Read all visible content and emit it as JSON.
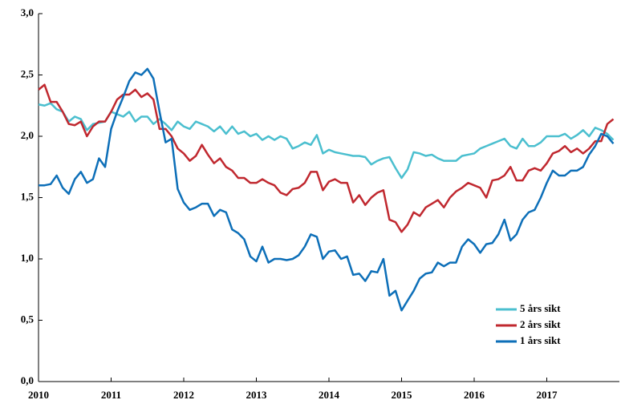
{
  "chart_data": {
    "type": "line",
    "x": [
      2010,
      2010.083,
      2010.167,
      2010.25,
      2010.333,
      2010.417,
      2010.5,
      2010.583,
      2010.667,
      2010.75,
      2010.833,
      2010.917,
      2011,
      2011.083,
      2011.167,
      2011.25,
      2011.333,
      2011.417,
      2011.5,
      2011.583,
      2011.667,
      2011.75,
      2011.833,
      2011.917,
      2012,
      2012.083,
      2012.167,
      2012.25,
      2012.333,
      2012.417,
      2012.5,
      2012.583,
      2012.667,
      2012.75,
      2012.833,
      2012.917,
      2013,
      2013.083,
      2013.167,
      2013.25,
      2013.333,
      2013.417,
      2013.5,
      2013.583,
      2013.667,
      2013.75,
      2013.833,
      2013.917,
      2014,
      2014.083,
      2014.167,
      2014.25,
      2014.333,
      2014.417,
      2014.5,
      2014.583,
      2014.667,
      2014.75,
      2014.833,
      2014.917,
      2015,
      2015.083,
      2015.167,
      2015.25,
      2015.333,
      2015.417,
      2015.5,
      2015.583,
      2015.667,
      2015.75,
      2015.833,
      2015.917,
      2016,
      2016.083,
      2016.167,
      2016.25,
      2016.333,
      2016.417,
      2016.5,
      2016.583,
      2016.667,
      2016.75,
      2016.833,
      2016.917,
      2017,
      2017.083,
      2017.167,
      2017.25,
      2017.333,
      2017.417,
      2017.5,
      2017.583,
      2017.667,
      2017.75,
      2017.833,
      2017.917
    ],
    "series": [
      {
        "name": "5 års sikt",
        "color": "#4bbfcf",
        "values": [
          2.26,
          2.25,
          2.27,
          2.22,
          2.2,
          2.12,
          2.16,
          2.14,
          2.05,
          2.1,
          2.11,
          2.12,
          2.2,
          2.18,
          2.16,
          2.2,
          2.12,
          2.16,
          2.16,
          2.1,
          2.14,
          2.1,
          2.05,
          2.12,
          2.08,
          2.06,
          2.12,
          2.1,
          2.08,
          2.04,
          2.08,
          2.02,
          2.08,
          2.02,
          2.04,
          2.0,
          2.02,
          1.97,
          2.0,
          1.97,
          2.0,
          1.98,
          1.9,
          1.92,
          1.95,
          1.93,
          2.01,
          1.86,
          1.89,
          1.87,
          1.86,
          1.85,
          1.84,
          1.84,
          1.83,
          1.77,
          1.8,
          1.82,
          1.83,
          1.74,
          1.66,
          1.73,
          1.87,
          1.86,
          1.84,
          1.85,
          1.82,
          1.8,
          1.8,
          1.8,
          1.84,
          1.85,
          1.86,
          1.9,
          1.92,
          1.94,
          1.96,
          1.98,
          1.92,
          1.9,
          1.98,
          1.92,
          1.92,
          1.95,
          2.0,
          2.0,
          2.0,
          2.02,
          1.98,
          2.01,
          2.05,
          2.0,
          2.07,
          2.05,
          2.02,
          1.97
        ]
      },
      {
        "name": "2 års sikt",
        "color": "#c0282f",
        "values": [
          2.38,
          2.42,
          2.28,
          2.28,
          2.2,
          2.1,
          2.09,
          2.12,
          2.0,
          2.08,
          2.12,
          2.12,
          2.2,
          2.3,
          2.34,
          2.34,
          2.38,
          2.32,
          2.35,
          2.3,
          2.06,
          2.06,
          2.0,
          1.9,
          1.86,
          1.8,
          1.84,
          1.93,
          1.85,
          1.78,
          1.82,
          1.75,
          1.72,
          1.66,
          1.66,
          1.62,
          1.62,
          1.65,
          1.62,
          1.6,
          1.54,
          1.52,
          1.57,
          1.58,
          1.62,
          1.71,
          1.71,
          1.56,
          1.63,
          1.65,
          1.62,
          1.62,
          1.46,
          1.52,
          1.44,
          1.5,
          1.54,
          1.56,
          1.32,
          1.3,
          1.22,
          1.28,
          1.38,
          1.35,
          1.42,
          1.45,
          1.48,
          1.42,
          1.5,
          1.55,
          1.58,
          1.62,
          1.6,
          1.58,
          1.5,
          1.64,
          1.65,
          1.68,
          1.75,
          1.64,
          1.64,
          1.72,
          1.74,
          1.72,
          1.78,
          1.86,
          1.88,
          1.92,
          1.87,
          1.9,
          1.86,
          1.9,
          1.96,
          1.96,
          2.1,
          2.14
        ]
      },
      {
        "name": "1 års sikt",
        "color": "#0d6fb8",
        "values": [
          1.6,
          1.6,
          1.61,
          1.68,
          1.58,
          1.53,
          1.65,
          1.71,
          1.62,
          1.65,
          1.82,
          1.75,
          2.06,
          2.2,
          2.32,
          2.45,
          2.52,
          2.5,
          2.55,
          2.47,
          2.2,
          1.95,
          1.98,
          1.57,
          1.46,
          1.4,
          1.42,
          1.45,
          1.45,
          1.35,
          1.4,
          1.38,
          1.24,
          1.21,
          1.16,
          1.02,
          0.98,
          1.1,
          0.97,
          1.0,
          1.0,
          0.99,
          1.0,
          1.03,
          1.1,
          1.2,
          1.18,
          1.0,
          1.06,
          1.07,
          1.0,
          1.02,
          0.87,
          0.88,
          0.82,
          0.9,
          0.89,
          1.0,
          0.7,
          0.74,
          0.58,
          0.66,
          0.74,
          0.84,
          0.88,
          0.89,
          0.97,
          0.94,
          0.97,
          0.97,
          1.1,
          1.16,
          1.12,
          1.05,
          1.12,
          1.13,
          1.2,
          1.32,
          1.15,
          1.2,
          1.32,
          1.38,
          1.4,
          1.5,
          1.62,
          1.72,
          1.68,
          1.68,
          1.72,
          1.72,
          1.75,
          1.85,
          1.92,
          2.02,
          2.0,
          1.94
        ]
      }
    ],
    "xlim": [
      2010,
      2018
    ],
    "xticks": [
      2010,
      2011,
      2012,
      2013,
      2014,
      2015,
      2016,
      2017
    ],
    "ylim": [
      0,
      3
    ],
    "yticks": [
      {
        "value": 0,
        "label": "0,0"
      },
      {
        "value": 0.5,
        "label": "0,5"
      },
      {
        "value": 1,
        "label": "1,0"
      },
      {
        "value": 1.5,
        "label": "1,5"
      },
      {
        "value": 2,
        "label": "2,0"
      },
      {
        "value": 2.5,
        "label": "2,5"
      },
      {
        "value": 3,
        "label": "3,0"
      }
    ],
    "grid": false,
    "legend": "lower right"
  }
}
